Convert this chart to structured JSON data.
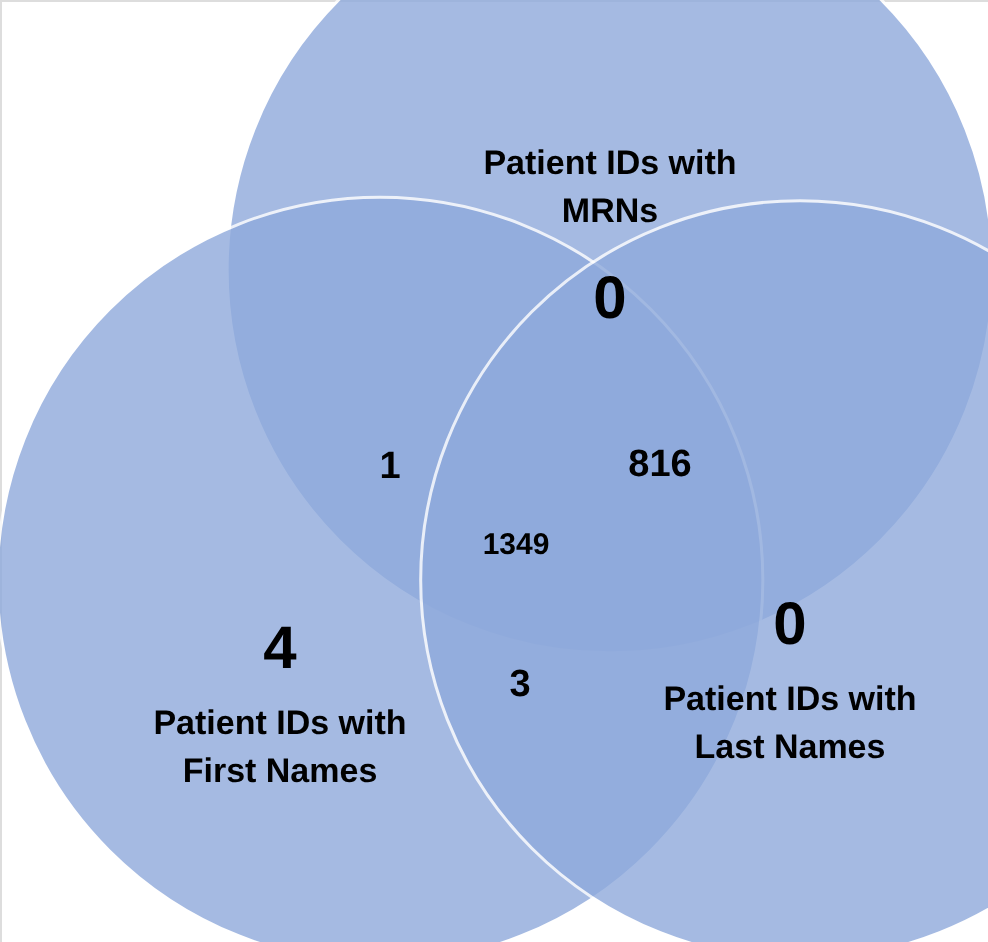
{
  "chart_data": {
    "type": "other",
    "categories": [
      "Patient IDs with\nMRNs",
      "Patient IDs with\nFirst Names",
      "Patient IDs with\nLast Names"
    ],
    "values": [
      0,
      4,
      0
    ],
    "annotations": [
      "1",
      "816",
      "3",
      "1349"
    ],
    "color": "#8faadc",
    "data_labels": true
  }
}
